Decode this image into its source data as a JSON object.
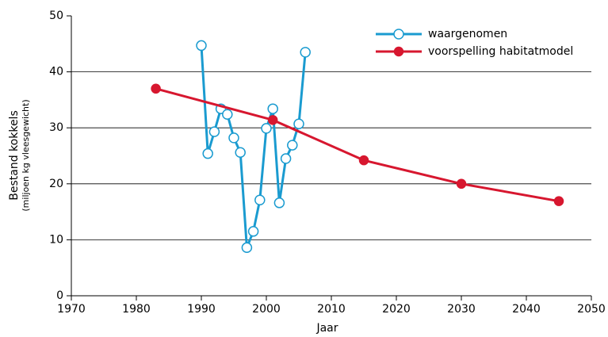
{
  "chart_data": {
    "type": "line",
    "xlabel": "Jaar",
    "ylabel": "Bestand kokkels",
    "ylabel_sub": "(miljoen kg vleesgewicht)",
    "xlim": [
      1970,
      2050
    ],
    "xticks": [
      1970,
      1980,
      1990,
      2000,
      2010,
      2020,
      2030,
      2040,
      2050
    ],
    "ylim": [
      0,
      50
    ],
    "yticks": [
      0,
      10,
      20,
      30,
      40,
      50
    ],
    "grid": true,
    "legend": "upper right",
    "series": [
      {
        "name": "waargenomen",
        "color": "#1a9bd0",
        "marker": "open",
        "x": [
          1990,
          1991,
          1992,
          1993,
          1994,
          1995,
          1996,
          1997,
          1998,
          1999,
          2000,
          2001,
          2002,
          2003,
          2004,
          2005,
          2006
        ],
        "values": [
          44.7,
          25.4,
          29.3,
          33.4,
          32.4,
          28.2,
          25.6,
          8.6,
          11.5,
          17.1,
          29.9,
          33.4,
          16.6,
          24.5,
          26.9,
          30.7,
          43.5
        ]
      },
      {
        "name": "voorspelling habitatmodel",
        "color": "#d7172f",
        "marker": "filled",
        "x": [
          1983,
          2001,
          2015,
          2030,
          2045
        ],
        "values": [
          37.0,
          31.4,
          24.2,
          20.0,
          16.9
        ]
      }
    ]
  }
}
